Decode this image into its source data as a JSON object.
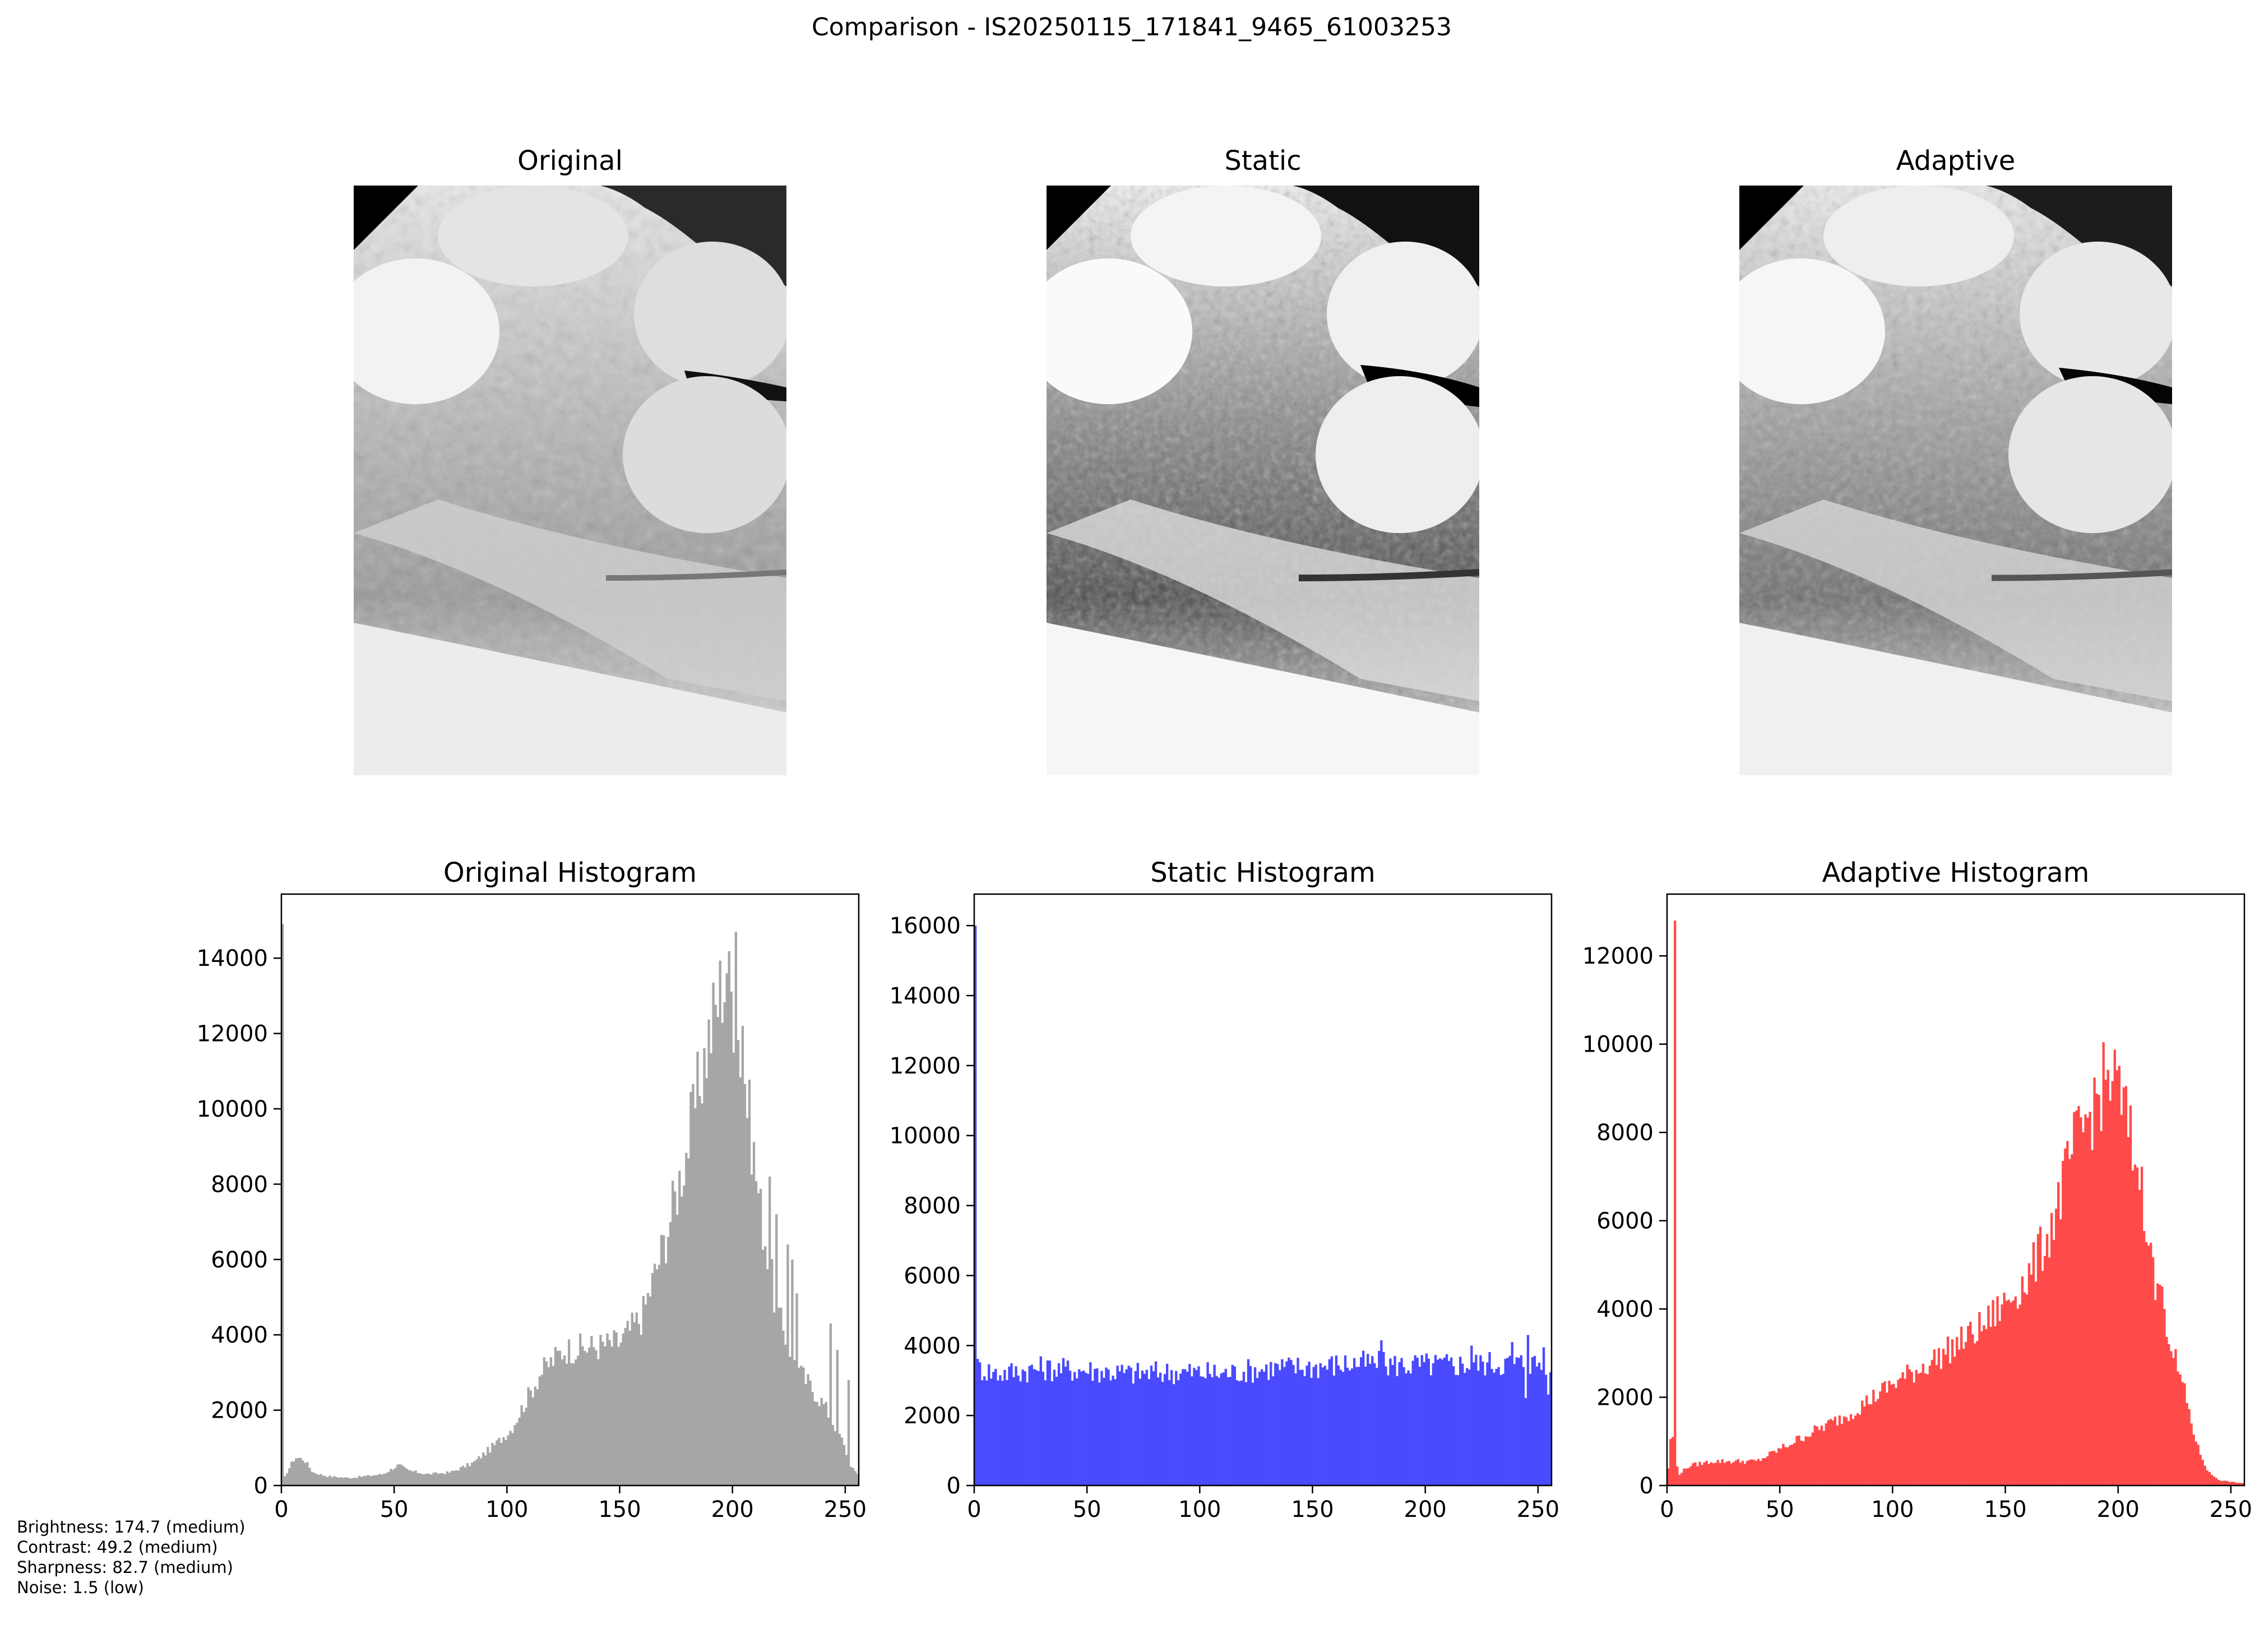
{
  "figure": {
    "suptitle": "Comparison - IS20250115_171841_9465_61003253"
  },
  "images": [
    {
      "title": "Original"
    },
    {
      "title": "Static"
    },
    {
      "title": "Adaptive"
    }
  ],
  "chart_data": [
    {
      "type": "bar",
      "title": "Original Histogram",
      "color": "#a6a6a6",
      "xlim": [
        0,
        256
      ],
      "ylim": [
        0,
        15700
      ],
      "xticks": [
        0,
        50,
        100,
        150,
        200,
        250
      ],
      "yticks": [
        0,
        2000,
        4000,
        6000,
        8000,
        10000,
        12000,
        14000
      ],
      "bins": 256,
      "profile": [
        [
          0,
          0
        ],
        [
          2,
          300
        ],
        [
          6,
          750
        ],
        [
          10,
          700
        ],
        [
          14,
          350
        ],
        [
          20,
          250
        ],
        [
          30,
          200
        ],
        [
          45,
          300
        ],
        [
          52,
          550
        ],
        [
          56,
          400
        ],
        [
          65,
          300
        ],
        [
          75,
          350
        ],
        [
          85,
          600
        ],
        [
          95,
          1100
        ],
        [
          102,
          1500
        ],
        [
          108,
          2200
        ],
        [
          115,
          3000
        ],
        [
          125,
          3600
        ],
        [
          140,
          3700
        ],
        [
          150,
          3800
        ],
        [
          160,
          4500
        ],
        [
          170,
          6500
        ],
        [
          180,
          9000
        ],
        [
          188,
          11500
        ],
        [
          196,
          13500
        ],
        [
          200,
          13000
        ],
        [
          205,
          11000
        ],
        [
          212,
          7500
        ],
        [
          220,
          4500
        ],
        [
          230,
          3000
        ],
        [
          240,
          2200
        ],
        [
          248,
          1300
        ],
        [
          252,
          600
        ],
        [
          255,
          300
        ]
      ],
      "peaks": [
        [
          201,
          14700
        ],
        [
          197,
          13600
        ],
        [
          204,
          12200
        ],
        [
          216,
          8200
        ],
        [
          219,
          7200
        ],
        [
          224,
          6400
        ],
        [
          226,
          6000
        ],
        [
          228,
          5100
        ],
        [
          243,
          4300
        ],
        [
          246,
          3600
        ],
        [
          251,
          2800
        ],
        [
          0,
          14900
        ]
      ]
    },
    {
      "type": "bar",
      "title": "Static Histogram",
      "color": "#4a4aff",
      "xlim": [
        0,
        256
      ],
      "ylim": [
        0,
        16900
      ],
      "xticks": [
        0,
        50,
        100,
        150,
        200,
        250
      ],
      "yticks": [
        0,
        2000,
        4000,
        6000,
        8000,
        10000,
        12000,
        14000,
        16000
      ],
      "bins": 256,
      "profile": [
        [
          0,
          3400
        ],
        [
          10,
          3200
        ],
        [
          30,
          3350
        ],
        [
          50,
          3300
        ],
        [
          70,
          3200
        ],
        [
          90,
          3250
        ],
        [
          110,
          3200
        ],
        [
          130,
          3350
        ],
        [
          150,
          3400
        ],
        [
          170,
          3500
        ],
        [
          190,
          3450
        ],
        [
          210,
          3450
        ],
        [
          230,
          3500
        ],
        [
          255,
          3500
        ]
      ],
      "peaks": [
        [
          0,
          16000
        ],
        [
          180,
          4150
        ],
        [
          220,
          4000
        ],
        [
          238,
          4100
        ],
        [
          245,
          4300
        ],
        [
          252,
          3950
        ],
        [
          244,
          2500
        ],
        [
          254,
          2600
        ]
      ]
    },
    {
      "type": "bar",
      "title": "Adaptive Histogram",
      "color": "#ff4a4a",
      "xlim": [
        0,
        256
      ],
      "ylim": [
        0,
        13400
      ],
      "xticks": [
        0,
        50,
        100,
        150,
        200,
        250
      ],
      "yticks": [
        0,
        2000,
        4000,
        6000,
        8000,
        10000,
        12000
      ],
      "bins": 256,
      "profile": [
        [
          0,
          100
        ],
        [
          2,
          1300
        ],
        [
          5,
          250
        ],
        [
          10,
          450
        ],
        [
          20,
          550
        ],
        [
          40,
          550
        ],
        [
          60,
          1100
        ],
        [
          80,
          1600
        ],
        [
          100,
          2300
        ],
        [
          120,
          2900
        ],
        [
          140,
          3600
        ],
        [
          160,
          4700
        ],
        [
          170,
          5800
        ],
        [
          180,
          7600
        ],
        [
          190,
          8700
        ],
        [
          196,
          9300
        ],
        [
          200,
          9000
        ],
        [
          205,
          8000
        ],
        [
          212,
          6300
        ],
        [
          220,
          4000
        ],
        [
          225,
          2900
        ],
        [
          230,
          2000
        ],
        [
          235,
          900
        ],
        [
          240,
          300
        ],
        [
          245,
          120
        ],
        [
          255,
          50
        ]
      ],
      "peaks": [
        [
          3,
          12800
        ],
        [
          209,
          6700
        ],
        [
          214,
          5500
        ],
        [
          216,
          4200
        ],
        [
          220,
          4000
        ]
      ]
    }
  ],
  "metrics": {
    "brightness": "Brightness: 174.7 (medium)",
    "contrast": "Contrast: 49.2 (medium)",
    "sharpness": "Sharpness: 82.7 (medium)",
    "noise": "Noise: 1.5 (low)"
  }
}
